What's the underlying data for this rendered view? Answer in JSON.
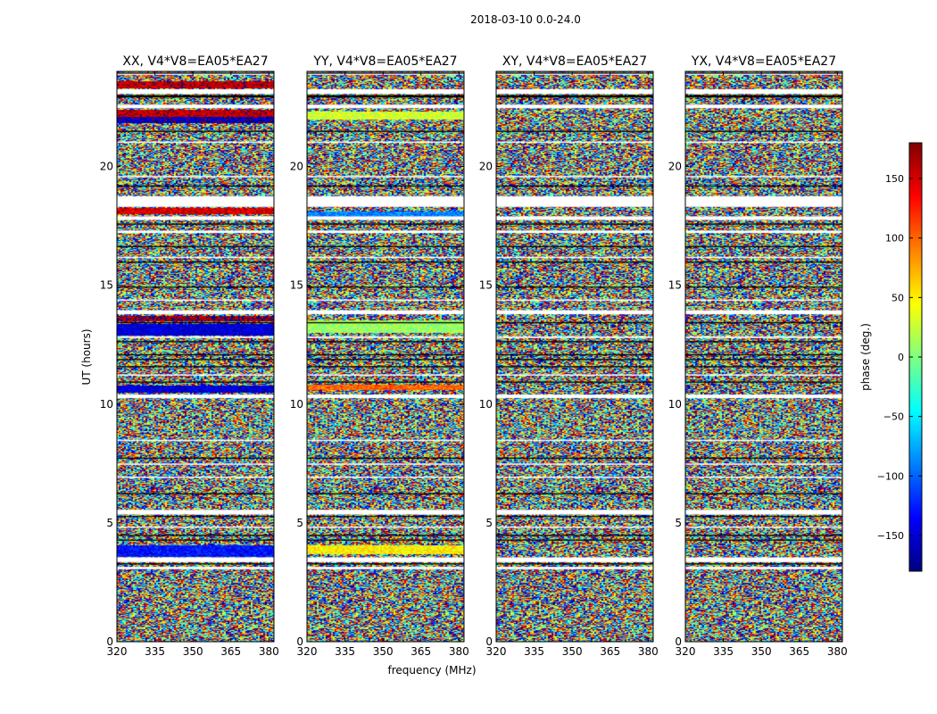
{
  "figure": {
    "suptitle": "2018-03-10 0.0-24.0",
    "xlabel": "frequency (MHz)",
    "ylabel": "UT (hours)"
  },
  "colorbar": {
    "label": "phase (deg.)",
    "range": [
      -180,
      180
    ],
    "ticks": [
      150,
      100,
      50,
      0,
      -50,
      -100,
      -150
    ],
    "tick_labels": [
      "150",
      "100",
      "50",
      "0",
      "−50",
      "−100",
      "−150"
    ],
    "colormap": "jet"
  },
  "chart_data": {
    "type": "heatmap",
    "xlim": [
      320,
      382
    ],
    "ylim": [
      0,
      24
    ],
    "x_ticks": [
      320,
      335,
      350,
      365,
      380
    ],
    "x_tick_labels": [
      "320",
      "335",
      "350",
      "365",
      "380"
    ],
    "y_ticks": [
      0,
      5,
      10,
      15,
      20
    ],
    "y_tick_labels": [
      "0",
      "5",
      "10",
      "15",
      "20"
    ],
    "panels": [
      {
        "title": "XX, V4*V8=EA05*EA27",
        "polarization": "XX",
        "coherent_bands": [
          {
            "t0": 23.3,
            "t1": 23.55,
            "phase": 160
          },
          {
            "t0": 22.05,
            "t1": 22.35,
            "phase": 160
          },
          {
            "t0": 21.85,
            "t1": 22.05,
            "phase": -160
          },
          {
            "t0": 18.0,
            "t1": 18.25,
            "phase": 150
          },
          {
            "t0": 13.5,
            "t1": 13.7,
            "phase": 170
          },
          {
            "t0": 12.9,
            "t1": 13.35,
            "phase": -150
          },
          {
            "t0": 10.5,
            "t1": 10.75,
            "phase": -150
          },
          {
            "t0": 3.6,
            "t1": 4.05,
            "phase": -130
          }
        ]
      },
      {
        "title": "YY, V4*V8=EA05*EA27",
        "polarization": "YY",
        "coherent_bands": [
          {
            "t0": 22.0,
            "t1": 22.3,
            "phase": 30
          },
          {
            "t0": 17.9,
            "t1": 18.1,
            "phase": -90
          },
          {
            "t0": 13.0,
            "t1": 13.5,
            "phase": 10
          },
          {
            "t0": 10.6,
            "t1": 10.8,
            "phase": 100
          },
          {
            "t0": 3.7,
            "t1": 4.05,
            "phase": 50
          }
        ]
      },
      {
        "title": "XY, V4*V8=EA05*EA27",
        "polarization": "XY",
        "coherent_bands": []
      },
      {
        "title": "YX, V4*V8=EA05*EA27",
        "polarization": "YX",
        "coherent_bands": []
      }
    ],
    "flagged_gaps_hours": [
      [
        23.85,
        23.95
      ],
      [
        23.05,
        23.25
      ],
      [
        22.45,
        22.6
      ],
      [
        21.0,
        21.05
      ],
      [
        19.55,
        19.6
      ],
      [
        18.3,
        18.75
      ],
      [
        17.75,
        17.9
      ],
      [
        17.2,
        17.3
      ],
      [
        16.15,
        16.2
      ],
      [
        14.35,
        14.4
      ],
      [
        13.78,
        13.95
      ],
      [
        12.78,
        12.85
      ],
      [
        11.2,
        11.25
      ],
      [
        10.25,
        10.4
      ],
      [
        8.45,
        8.5
      ],
      [
        7.45,
        7.5
      ],
      [
        6.9,
        6.95
      ],
      [
        5.35,
        5.55
      ],
      [
        4.8,
        4.85
      ],
      [
        3.35,
        3.55
      ],
      [
        3.05,
        3.15
      ]
    ],
    "dark_gaps_hours": [
      [
        23.9,
        23.95
      ],
      [
        22.9,
        23.0
      ],
      [
        21.45,
        21.5
      ],
      [
        19.15,
        19.2
      ],
      [
        17.55,
        17.6
      ],
      [
        16.6,
        16.65
      ],
      [
        15.95,
        16.0
      ],
      [
        14.9,
        14.95
      ],
      [
        13.4,
        13.45
      ],
      [
        12.6,
        12.65
      ],
      [
        12.05,
        12.1
      ],
      [
        11.85,
        11.9
      ],
      [
        11.55,
        11.6
      ],
      [
        10.9,
        10.95
      ],
      [
        7.7,
        7.75
      ],
      [
        6.2,
        6.25
      ],
      [
        5.25,
        5.3
      ],
      [
        4.45,
        4.5
      ],
      [
        4.25,
        4.3
      ],
      [
        3.25,
        3.3
      ]
    ]
  }
}
